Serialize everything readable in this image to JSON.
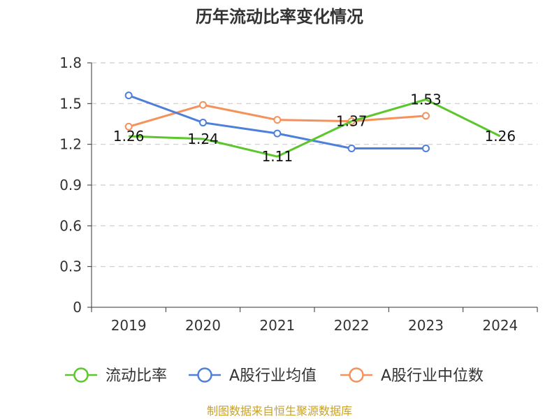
{
  "chart_data": {
    "type": "line",
    "title": "历年流动比率变化情况",
    "categories": [
      "2019",
      "2020",
      "2021",
      "2022",
      "2023",
      "2024"
    ],
    "ylim": [
      0,
      1.8
    ],
    "yticks": [
      "0",
      "0.3",
      "0.6",
      "0.9",
      "1.2",
      "1.5",
      "1.8"
    ],
    "grid": true,
    "legend_position": "bottom",
    "series": [
      {
        "name": "流动比率",
        "color": "#5cc72c",
        "values": [
          1.26,
          1.24,
          1.11,
          1.37,
          1.53,
          1.26
        ],
        "labels": [
          "1.26",
          "1.24",
          "1.11",
          "1.37",
          "1.53",
          "1.26"
        ]
      },
      {
        "name": "A股行业均值",
        "color": "#4e7fdb",
        "values": [
          1.56,
          1.36,
          1.28,
          1.17,
          1.17,
          null
        ]
      },
      {
        "name": "A股行业中位数",
        "color": "#f5925b",
        "values": [
          1.33,
          1.49,
          1.38,
          1.37,
          1.41,
          null
        ]
      }
    ]
  },
  "source": "制图数据来自恒生聚源数据库"
}
